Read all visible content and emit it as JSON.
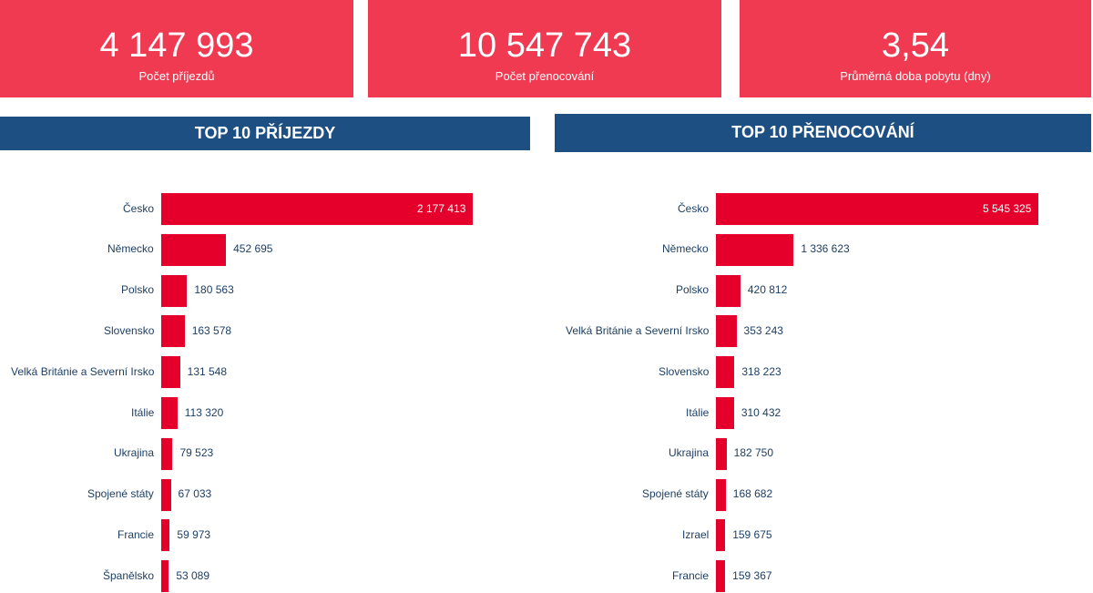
{
  "kpis": [
    {
      "value": "4 147 993",
      "label": "Počet příjezdů"
    },
    {
      "value": "10 547 743",
      "label": "Počet přenocování"
    },
    {
      "value": "3,54",
      "label": "Průměrná doba pobytu (dny)"
    }
  ],
  "colors": {
    "kpi_bg": "#ef3a52",
    "header_bg": "#1d4f82",
    "bar": "#e4002b",
    "label_text": "#1d3f66"
  },
  "chart_data": [
    {
      "type": "bar",
      "orientation": "horizontal",
      "title": "TOP 10 PŘÍJEZDY",
      "categories": [
        "Česko",
        "Německo",
        "Polsko",
        "Slovensko",
        "Velká Británie a Severní Irsko",
        "Itálie",
        "Ukrajina",
        "Spojené státy",
        "Francie",
        "Španělsko"
      ],
      "values": [
        2177413,
        452695,
        180563,
        163578,
        131548,
        113320,
        79523,
        67033,
        59973,
        53089
      ],
      "value_labels": [
        "2 177 413",
        "452 695",
        "180 563",
        "163 578",
        "131 548",
        "113 320",
        "79 523",
        "67 033",
        "59 973",
        "53 089"
      ],
      "xlabel": "",
      "ylabel": "",
      "grid": false
    },
    {
      "type": "bar",
      "orientation": "horizontal",
      "title": "TOP 10 PŘENOCOVÁNÍ",
      "categories": [
        "Česko",
        "Německo",
        "Polsko",
        "Velká Británie a Severní Irsko",
        "Slovensko",
        "Itálie",
        "Ukrajina",
        "Spojené státy",
        "Izrael",
        "Francie"
      ],
      "values": [
        5545325,
        1336623,
        420812,
        353243,
        318223,
        310432,
        182750,
        168682,
        159675,
        159367
      ],
      "value_labels": [
        "5 545 325",
        "1 336 623",
        "420 812",
        "353 243",
        "318 223",
        "310 432",
        "182 750",
        "168 682",
        "159 675",
        "159 367"
      ],
      "xlabel": "",
      "ylabel": "",
      "grid": false
    }
  ]
}
